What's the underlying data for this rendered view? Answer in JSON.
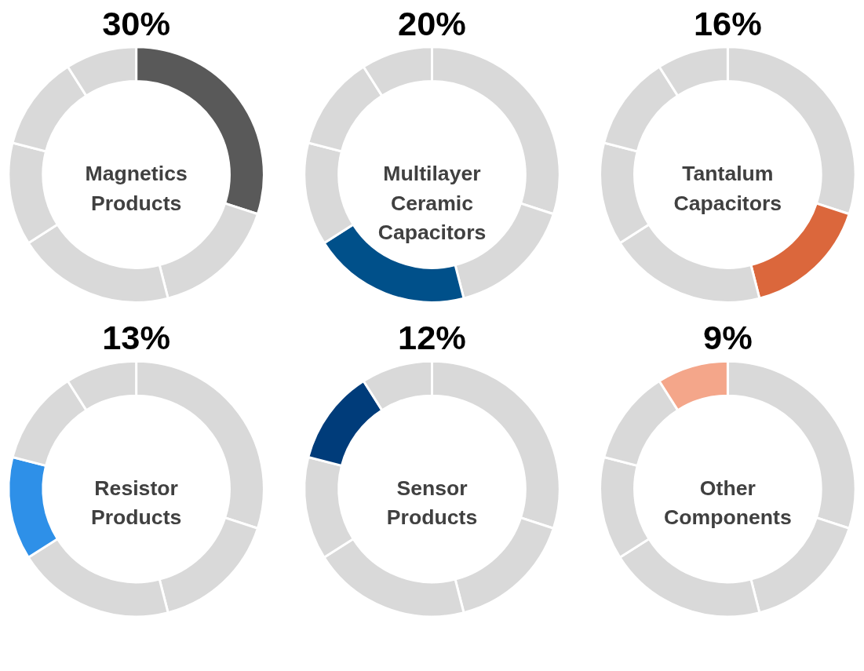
{
  "chart_data": [
    {
      "type": "donut",
      "title": "30%",
      "annotations": [
        "Magnetics Products"
      ],
      "categories": [
        null,
        null,
        null,
        null,
        null,
        null
      ],
      "values": [
        30,
        16,
        20,
        13,
        12,
        9
      ],
      "colors": [
        "#595959",
        "#d9d9d9",
        "#d9d9d9",
        "#d9d9d9",
        "#d9d9d9",
        "#d9d9d9"
      ]
    },
    {
      "type": "donut",
      "title": "20%",
      "annotations": [
        "Multilayer Ceramic Capacitors"
      ],
      "categories": [
        null,
        null,
        null,
        null,
        null,
        null
      ],
      "values": [
        30,
        16,
        20,
        13,
        12,
        9
      ],
      "colors": [
        "#d9d9d9",
        "#d9d9d9",
        "#00508a",
        "#d9d9d9",
        "#d9d9d9",
        "#d9d9d9"
      ]
    },
    {
      "type": "donut",
      "title": "16%",
      "annotations": [
        "Tantalum Capacitors"
      ],
      "categories": [
        null,
        null,
        null,
        null,
        null,
        null
      ],
      "values": [
        30,
        16,
        20,
        13,
        12,
        9
      ],
      "colors": [
        "#d9d9d9",
        "#db673c",
        "#d9d9d9",
        "#d9d9d9",
        "#d9d9d9",
        "#d9d9d9"
      ]
    },
    {
      "type": "donut",
      "title": "13%",
      "annotations": [
        "Resistor Products"
      ],
      "categories": [
        null,
        null,
        null,
        null,
        null,
        null
      ],
      "values": [
        30,
        16,
        20,
        13,
        12,
        9
      ],
      "colors": [
        "#d9d9d9",
        "#d9d9d9",
        "#d9d9d9",
        "#2e90e8",
        "#d9d9d9",
        "#d9d9d9"
      ]
    },
    {
      "type": "donut",
      "title": "12%",
      "annotations": [
        "Sensor Products"
      ],
      "categories": [
        null,
        null,
        null,
        null,
        null,
        null
      ],
      "values": [
        30,
        16,
        20,
        13,
        12,
        9
      ],
      "colors": [
        "#d9d9d9",
        "#d9d9d9",
        "#d9d9d9",
        "#d9d9d9",
        "#003c7a",
        "#d9d9d9"
      ]
    },
    {
      "type": "donut",
      "title": "9%",
      "annotations": [
        "Other Components"
      ],
      "categories": [
        null,
        null,
        null,
        null,
        null,
        null
      ],
      "values": [
        30,
        16,
        20,
        13,
        12,
        9
      ],
      "colors": [
        "#d9d9d9",
        "#d9d9d9",
        "#d9d9d9",
        "#d9d9d9",
        "#d9d9d9",
        "#f4a68a"
      ]
    }
  ]
}
